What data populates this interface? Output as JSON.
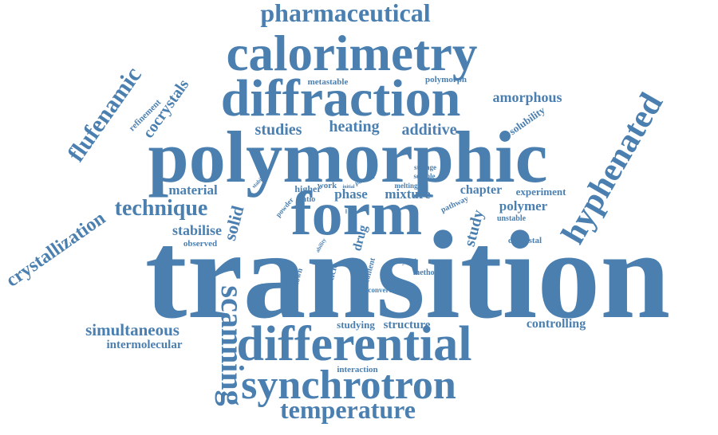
{
  "cloud": {
    "color": "#4a7fb0",
    "words": [
      "pharmaceutical",
      "calorimetry",
      "diffraction",
      "polymorphic",
      "form",
      "transition",
      "differential",
      "synchrotron",
      "temperature",
      "scanning",
      "hyphenated",
      "flufenamic",
      "cocrystals",
      "refinement",
      "crystallization",
      "technique",
      "material",
      "stabilise",
      "observed",
      "solid",
      "simultaneous",
      "intermolecular",
      "studies",
      "heating",
      "additive",
      "metastable",
      "polymorph",
      "amorphous",
      "solubility",
      "stability",
      "higher",
      "ratio",
      "powder",
      "initial",
      "pattern",
      "storage",
      "soluble",
      "work",
      "melting",
      "phase",
      "mixture",
      "chapter",
      "experiment",
      "pathway",
      "study",
      "polymer",
      "unstable",
      "cocrystal",
      "drug",
      "ability",
      "reflection",
      "unknown",
      "particle",
      "content",
      "crystal",
      "method",
      "convert",
      "studying",
      "structure",
      "controlling",
      "interaction",
      "size",
      "energy"
    ]
  }
}
